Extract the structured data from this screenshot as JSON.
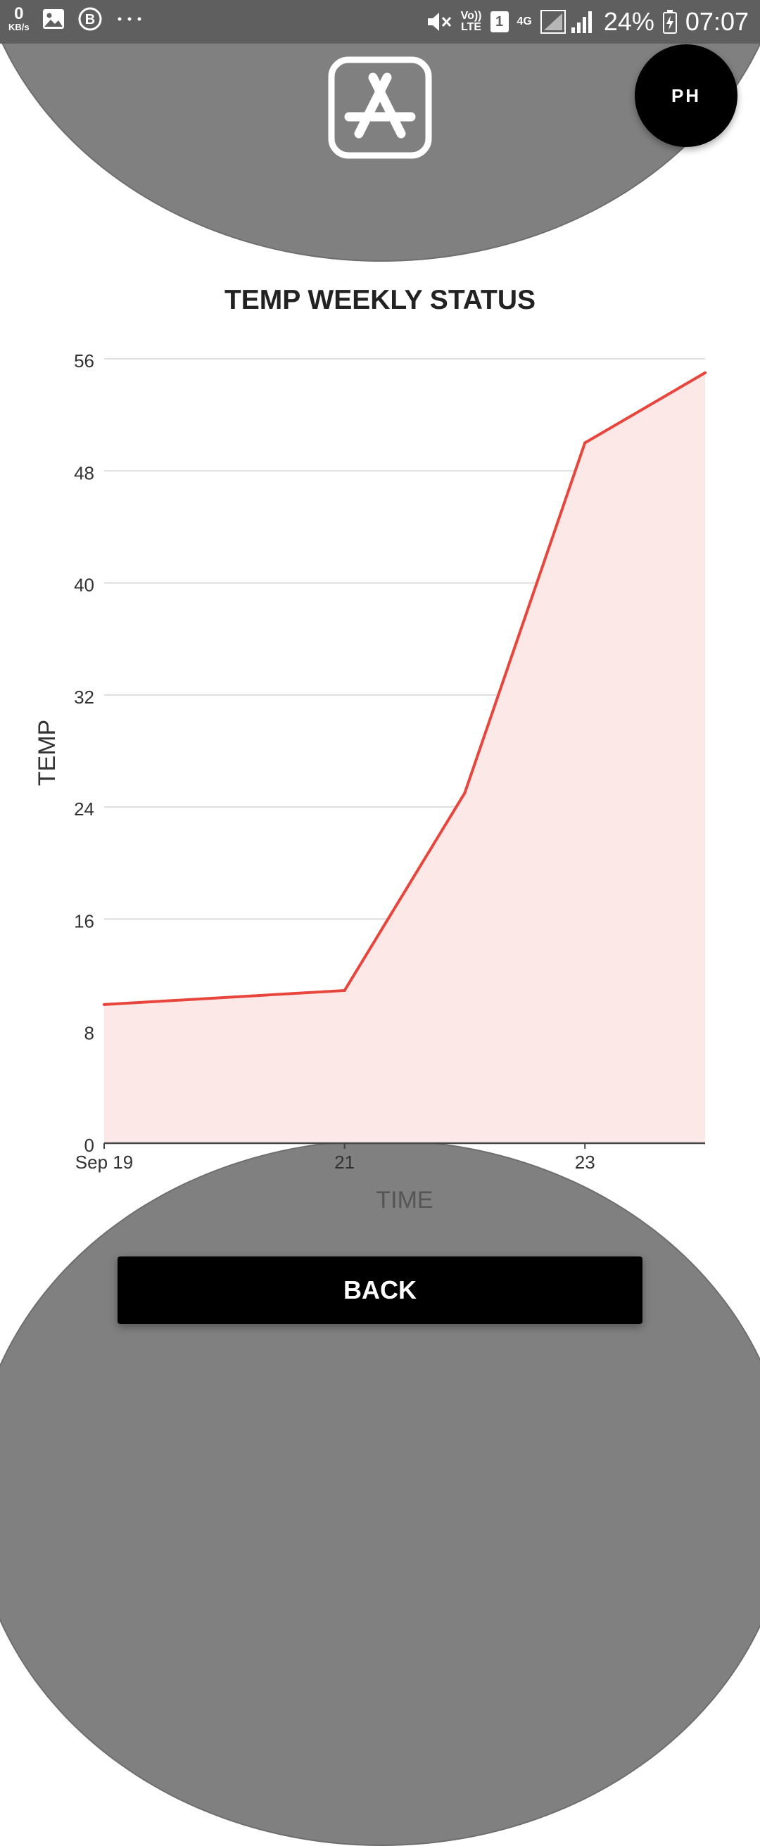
{
  "status_bar": {
    "speed_value": "0",
    "speed_unit": "KB/s",
    "volte_top": "Vo))",
    "volte_bottom": "LTE",
    "sim_number": "1",
    "network": "4G",
    "battery_percent": "24%",
    "time": "07:07",
    "icons": [
      "gallery-icon",
      "b-icon",
      "more-dots-icon",
      "mute-icon",
      "signal-icon",
      "battery-icon"
    ]
  },
  "header": {
    "app_icon": "app-store-icon",
    "avatar_initials": "PH"
  },
  "chart_data": {
    "type": "area",
    "title": "TEMP WEEKLY STATUS",
    "xlabel": "TIME",
    "ylabel": "TEMP",
    "x": [
      "2023-09-19",
      "2023-09-21",
      "2023-09-22",
      "2023-09-23",
      "2023-09-24"
    ],
    "x_tick_labels": [
      "Sep 19",
      "21",
      "23"
    ],
    "values": [
      9.9,
      10.9,
      25,
      50,
      55
    ],
    "ylim": [
      0,
      56
    ],
    "y_ticks": [
      0,
      8,
      16,
      24,
      32,
      40,
      48,
      56
    ],
    "line_color": "#e8453c",
    "fill_color": "#fde8e8",
    "grid": true
  },
  "footer": {
    "back_label": "BACK"
  }
}
